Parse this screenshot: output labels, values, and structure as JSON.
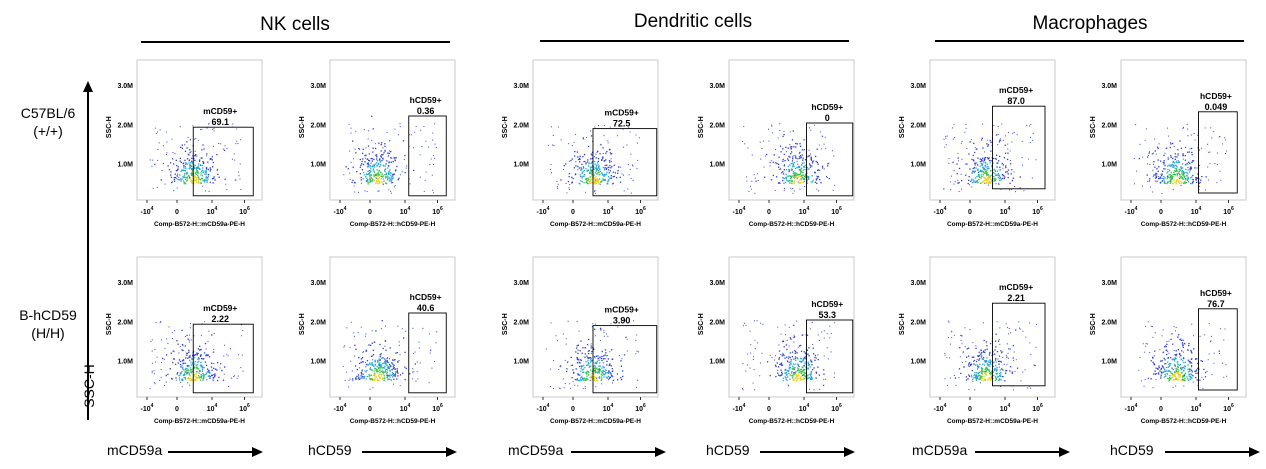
{
  "groups": [
    {
      "title": "NK cells"
    },
    {
      "title": "Dendritic cells"
    },
    {
      "title": "Macrophages"
    }
  ],
  "rows": [
    {
      "label": "C57BL/6\n(+/+)"
    },
    {
      "label": "B-hCD59\n(H/H)"
    }
  ],
  "y_axis_label": "SSC-H",
  "x_arrows": [
    "mCD59a",
    "hCD59",
    "mCD59a",
    "hCD59",
    "mCD59a",
    "hCD59"
  ],
  "chart_data": [
    {
      "type": "scatter",
      "group": "NK cells",
      "row": "C57BL/6 (+/+)",
      "xlabel": "Comp-B572-H::mCD59a-PE-H",
      "ylabel": "SSC-H",
      "gate_label": "mCD59+",
      "gate_value": "69.1",
      "yticks": [
        "3.0M",
        "2.0M",
        "1.0M"
      ],
      "xticks": [
        "-10^4",
        "0",
        "10^4",
        "10^6"
      ]
    },
    {
      "type": "scatter",
      "group": "NK cells",
      "row": "C57BL/6 (+/+)",
      "xlabel": "Comp-B572-H::hCD59-PE-H",
      "ylabel": "SSC-H",
      "gate_label": "hCD59+",
      "gate_value": "0.36",
      "yticks": [
        "3.0M",
        "2.0M",
        "1.0M"
      ],
      "xticks": [
        "-10^4",
        "0",
        "10^4",
        "10^6"
      ]
    },
    {
      "type": "scatter",
      "group": "Dendritic cells",
      "row": "C57BL/6 (+/+)",
      "xlabel": "Comp-B572-H::mCD59a-PE-H",
      "ylabel": "SSC-H",
      "gate_label": "mCD59+",
      "gate_value": "72.5",
      "yticks": [
        "3.0M",
        "2.0M",
        "1.0M"
      ],
      "xticks": [
        "-10^4",
        "0",
        "10^4",
        "10^6"
      ]
    },
    {
      "type": "scatter",
      "group": "Dendritic cells",
      "row": "C57BL/6 (+/+)",
      "xlabel": "Comp-B572-H::hCD59-PE-H",
      "ylabel": "SSC-H",
      "gate_label": "hCD59+",
      "gate_value": "0",
      "yticks": [
        "3.0M",
        "2.0M",
        "1.0M"
      ],
      "xticks": [
        "-10^4",
        "0",
        "10^4",
        "10^6"
      ]
    },
    {
      "type": "scatter",
      "group": "Macrophages",
      "row": "C57BL/6 (+/+)",
      "xlabel": "Comp-B572-H::mCD59a-PE-H",
      "ylabel": "SSC-H",
      "gate_label": "mCD59+",
      "gate_value": "87.0",
      "yticks": [
        "3.0M",
        "2.0M",
        "1.0M"
      ],
      "xticks": [
        "-10^4",
        "0",
        "10^4",
        "10^6"
      ]
    },
    {
      "type": "scatter",
      "group": "Macrophages",
      "row": "C57BL/6 (+/+)",
      "xlabel": "Comp-B572-H::hCD59-PE-H",
      "ylabel": "SSC-H",
      "gate_label": "hCD59+",
      "gate_value": "0.049",
      "yticks": [
        "3.0M",
        "2.0M",
        "1.0M"
      ],
      "xticks": [
        "-10^4",
        "0",
        "10^4",
        "10^6"
      ]
    },
    {
      "type": "scatter",
      "group": "NK cells",
      "row": "B-hCD59 (H/H)",
      "xlabel": "Comp-B572-H::mCD59a-PE-H",
      "ylabel": "SSC-H",
      "gate_label": "mCD59+",
      "gate_value": "2.22",
      "yticks": [
        "3.0M",
        "2.0M",
        "1.0M"
      ],
      "xticks": [
        "-10^4",
        "0",
        "10^4",
        "10^6"
      ]
    },
    {
      "type": "scatter",
      "group": "NK cells",
      "row": "B-hCD59 (H/H)",
      "xlabel": "Comp-B572-H::hCD59-PE-H",
      "ylabel": "SSC-H",
      "gate_label": "hCD59+",
      "gate_value": "40.6",
      "yticks": [
        "3.0M",
        "2.0M",
        "1.0M"
      ],
      "xticks": [
        "-10^4",
        "0",
        "10^4",
        "10^6"
      ]
    },
    {
      "type": "scatter",
      "group": "Dendritic cells",
      "row": "B-hCD59 (H/H)",
      "xlabel": "Comp-B572-H::mCD59a-PE-H",
      "ylabel": "SSC-H",
      "gate_label": "mCD59+",
      "gate_value": "3.90",
      "yticks": [
        "3.0M",
        "2.0M",
        "1.0M"
      ],
      "xticks": [
        "-10^4",
        "0",
        "10^4",
        "10^6"
      ]
    },
    {
      "type": "scatter",
      "group": "Dendritic cells",
      "row": "B-hCD59 (H/H)",
      "xlabel": "Comp-B572-H::hCD59-PE-H",
      "ylabel": "SSC-H",
      "gate_label": "hCD59+",
      "gate_value": "53.3",
      "yticks": [
        "3.0M",
        "2.0M",
        "1.0M"
      ],
      "xticks": [
        "-10^4",
        "0",
        "10^4",
        "10^6"
      ]
    },
    {
      "type": "scatter",
      "group": "Macrophages",
      "row": "B-hCD59 (H/H)",
      "xlabel": "Comp-B572-H::mCD59a-PE-H",
      "ylabel": "SSC-H",
      "gate_label": "mCD59+",
      "gate_value": "2.21",
      "yticks": [
        "3.0M",
        "2.0M",
        "1.0M"
      ],
      "xticks": [
        "-10^4",
        "0",
        "10^4",
        "10^6"
      ]
    },
    {
      "type": "scatter",
      "group": "Macrophages",
      "row": "B-hCD59 (H/H)",
      "xlabel": "Comp-B572-H::hCD59-PE-H",
      "ylabel": "SSC-H",
      "gate_label": "hCD59+",
      "gate_value": "76.7",
      "yticks": [
        "3.0M",
        "2.0M",
        "1.0M"
      ],
      "xticks": [
        "-10^4",
        "0",
        "10^4",
        "10^6"
      ]
    }
  ]
}
